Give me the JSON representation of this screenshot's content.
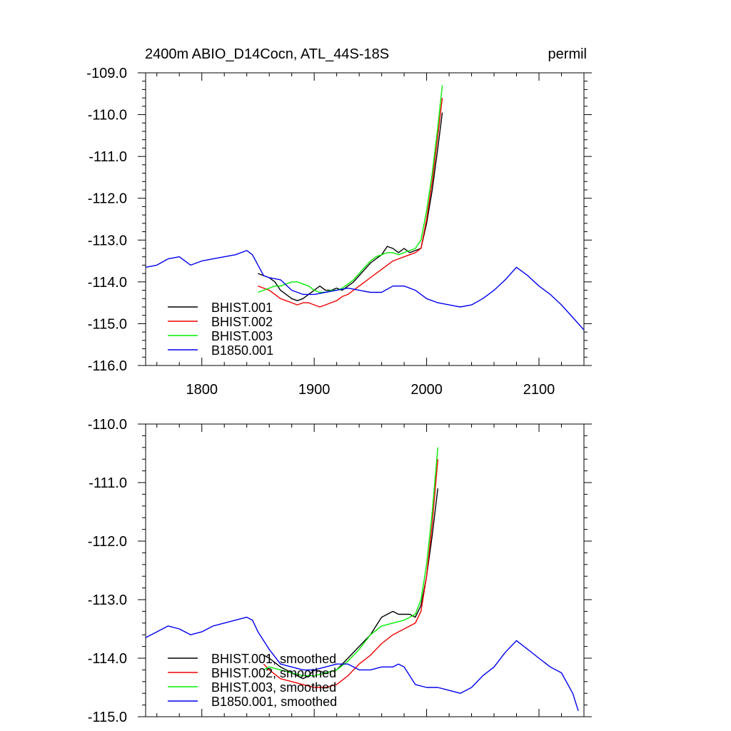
{
  "header": {
    "title": "2400m ABIO_D14Cocn, ATL_44S-18S",
    "units": "permil"
  },
  "chart_data": [
    {
      "type": "line",
      "panel": "top",
      "xlim": [
        1750,
        2140
      ],
      "ylim": [
        -116.0,
        -109.0
      ],
      "xticks": [
        1800,
        1900,
        2000,
        2100
      ],
      "xtick_labels": [
        "1800",
        "1900",
        "2000",
        "2100"
      ],
      "yticks": [
        -116.0,
        -115.0,
        -114.0,
        -113.0,
        -112.0,
        -111.0,
        -110.0,
        -109.0
      ],
      "ytick_labels": [
        "-116.0",
        "-115.0",
        "-114.0",
        "-113.0",
        "-112.0",
        "-111.0",
        "-110.0",
        "-109.0"
      ],
      "grid": false,
      "legend_position": "bottom-left",
      "series": [
        {
          "name": "BHIST.001",
          "color": "#000000",
          "x": [
            1850,
            1855,
            1860,
            1865,
            1870,
            1875,
            1880,
            1885,
            1890,
            1895,
            1900,
            1905,
            1910,
            1915,
            1920,
            1925,
            1930,
            1935,
            1940,
            1945,
            1950,
            1955,
            1960,
            1965,
            1970,
            1975,
            1980,
            1985,
            1990,
            1995,
            2000,
            2005,
            2010,
            2014
          ],
          "y": [
            -113.8,
            -113.85,
            -113.9,
            -114.0,
            -114.2,
            -114.3,
            -114.4,
            -114.45,
            -114.4,
            -114.3,
            -114.2,
            -114.1,
            -114.2,
            -114.2,
            -114.15,
            -114.2,
            -114.1,
            -114.0,
            -113.85,
            -113.7,
            -113.55,
            -113.45,
            -113.35,
            -113.15,
            -113.2,
            -113.3,
            -113.2,
            -113.3,
            -113.25,
            -113.2,
            -112.6,
            -111.8,
            -110.8,
            -109.95
          ]
        },
        {
          "name": "BHIST.002",
          "color": "#ee0000",
          "x": [
            1850,
            1855,
            1860,
            1865,
            1870,
            1875,
            1880,
            1885,
            1890,
            1895,
            1900,
            1905,
            1910,
            1915,
            1920,
            1925,
            1930,
            1935,
            1940,
            1945,
            1950,
            1955,
            1960,
            1965,
            1970,
            1975,
            1980,
            1985,
            1990,
            1995,
            2000,
            2005,
            2010,
            2014
          ],
          "y": [
            -114.1,
            -114.15,
            -114.2,
            -114.3,
            -114.4,
            -114.45,
            -114.5,
            -114.55,
            -114.5,
            -114.5,
            -114.55,
            -114.6,
            -114.55,
            -114.5,
            -114.45,
            -114.35,
            -114.3,
            -114.2,
            -114.1,
            -114.0,
            -113.9,
            -113.8,
            -113.7,
            -113.6,
            -113.5,
            -113.45,
            -113.4,
            -113.35,
            -113.3,
            -113.2,
            -112.5,
            -111.6,
            -110.5,
            -109.6
          ]
        },
        {
          "name": "BHIST.003",
          "color": "#00ee00",
          "x": [
            1850,
            1855,
            1860,
            1865,
            1870,
            1875,
            1880,
            1885,
            1890,
            1895,
            1900,
            1905,
            1910,
            1915,
            1920,
            1925,
            1930,
            1935,
            1940,
            1945,
            1950,
            1955,
            1960,
            1965,
            1970,
            1975,
            1980,
            1985,
            1990,
            1995,
            2000,
            2005,
            2010,
            2014
          ],
          "y": [
            -114.25,
            -114.2,
            -114.15,
            -114.1,
            -114.1,
            -114.05,
            -114.0,
            -114.0,
            -114.05,
            -114.1,
            -114.2,
            -114.25,
            -114.25,
            -114.2,
            -114.2,
            -114.15,
            -114.05,
            -113.95,
            -113.8,
            -113.65,
            -113.5,
            -113.4,
            -113.35,
            -113.3,
            -113.3,
            -113.35,
            -113.3,
            -113.25,
            -113.2,
            -113.0,
            -112.3,
            -111.4,
            -110.3,
            -109.3
          ]
        },
        {
          "name": "B1850.001",
          "color": "#0000ee",
          "x": [
            1750,
            1760,
            1770,
            1780,
            1790,
            1800,
            1810,
            1820,
            1830,
            1840,
            1845,
            1850,
            1855,
            1860,
            1870,
            1880,
            1890,
            1900,
            1910,
            1920,
            1930,
            1940,
            1950,
            1960,
            1970,
            1980,
            1990,
            2000,
            2010,
            2020,
            2030,
            2040,
            2050,
            2060,
            2070,
            2080,
            2090,
            2100,
            2110,
            2120,
            2130,
            2140
          ],
          "y": [
            -113.65,
            -113.6,
            -113.45,
            -113.4,
            -113.6,
            -113.5,
            -113.45,
            -113.4,
            -113.35,
            -113.25,
            -113.35,
            -113.6,
            -113.85,
            -113.9,
            -113.95,
            -114.2,
            -114.3,
            -114.3,
            -114.25,
            -114.2,
            -114.15,
            -114.2,
            -114.25,
            -114.25,
            -114.1,
            -114.1,
            -114.2,
            -114.4,
            -114.5,
            -114.55,
            -114.6,
            -114.55,
            -114.4,
            -114.2,
            -113.95,
            -113.65,
            -113.85,
            -114.1,
            -114.3,
            -114.55,
            -114.85,
            -115.15
          ]
        }
      ]
    },
    {
      "type": "line",
      "panel": "bottom",
      "xlim": [
        1750,
        2140
      ],
      "ylim": [
        -115.0,
        -110.0
      ],
      "xticks": [
        1800,
        1900,
        2000,
        2100
      ],
      "yticks": [
        -115.0,
        -114.0,
        -113.0,
        -112.0,
        -111.0,
        -110.0
      ],
      "ytick_labels": [
        "-115.0",
        "-114.0",
        "-113.0",
        "-112.0",
        "-111.0",
        "-110.0"
      ],
      "grid": false,
      "legend_position": "bottom-left",
      "series": [
        {
          "name": "BHIST.001, smoothed",
          "color": "#000000",
          "x": [
            1855,
            1860,
            1870,
            1880,
            1890,
            1895,
            1900,
            1910,
            1920,
            1930,
            1940,
            1950,
            1955,
            1960,
            1965,
            1970,
            1975,
            1980,
            1985,
            1990,
            1995,
            2000,
            2005,
            2010
          ],
          "y": [
            -113.95,
            -114.0,
            -114.15,
            -114.25,
            -114.35,
            -114.3,
            -114.2,
            -114.25,
            -114.2,
            -114.0,
            -113.8,
            -113.6,
            -113.45,
            -113.3,
            -113.25,
            -113.2,
            -113.25,
            -113.25,
            -113.25,
            -113.3,
            -113.1,
            -112.6,
            -111.9,
            -111.1
          ]
        },
        {
          "name": "BHIST.002, smoothed",
          "color": "#ee0000",
          "x": [
            1855,
            1860,
            1870,
            1880,
            1890,
            1900,
            1910,
            1920,
            1930,
            1940,
            1950,
            1960,
            1970,
            1980,
            1985,
            1990,
            1995,
            2000,
            2005,
            2010
          ],
          "y": [
            -114.1,
            -114.2,
            -114.35,
            -114.4,
            -114.45,
            -114.5,
            -114.5,
            -114.45,
            -114.3,
            -114.1,
            -113.95,
            -113.75,
            -113.6,
            -113.5,
            -113.45,
            -113.4,
            -113.2,
            -112.6,
            -111.7,
            -110.6
          ]
        },
        {
          "name": "BHIST.003, smoothed",
          "color": "#00ee00",
          "x": [
            1855,
            1860,
            1870,
            1880,
            1890,
            1900,
            1910,
            1920,
            1930,
            1940,
            1950,
            1960,
            1970,
            1980,
            1985,
            1990,
            1995,
            2000,
            2005,
            2010
          ],
          "y": [
            -114.2,
            -114.15,
            -114.2,
            -114.25,
            -114.3,
            -114.3,
            -114.25,
            -114.2,
            -114.05,
            -113.85,
            -113.6,
            -113.45,
            -113.4,
            -113.35,
            -113.3,
            -113.25,
            -113.0,
            -112.4,
            -111.5,
            -110.4
          ]
        },
        {
          "name": "B1850.001, smoothed",
          "color": "#0000ee",
          "x": [
            1750,
            1760,
            1770,
            1780,
            1790,
            1800,
            1810,
            1820,
            1830,
            1840,
            1845,
            1850,
            1860,
            1870,
            1880,
            1890,
            1900,
            1910,
            1920,
            1930,
            1940,
            1950,
            1960,
            1970,
            1975,
            1980,
            1990,
            2000,
            2010,
            2020,
            2030,
            2040,
            2050,
            2060,
            2070,
            2080,
            2090,
            2100,
            2110,
            2120,
            2130,
            2135
          ],
          "y": [
            -113.65,
            -113.55,
            -113.45,
            -113.5,
            -113.6,
            -113.55,
            -113.45,
            -113.4,
            -113.35,
            -113.3,
            -113.35,
            -113.55,
            -113.85,
            -114.1,
            -114.15,
            -114.2,
            -114.2,
            -114.15,
            -114.1,
            -114.1,
            -114.2,
            -114.2,
            -114.15,
            -114.15,
            -114.1,
            -114.15,
            -114.45,
            -114.5,
            -114.5,
            -114.55,
            -114.6,
            -114.5,
            -114.3,
            -114.15,
            -113.9,
            -113.7,
            -113.85,
            -114.0,
            -114.15,
            -114.25,
            -114.6,
            -114.9
          ]
        }
      ]
    }
  ]
}
